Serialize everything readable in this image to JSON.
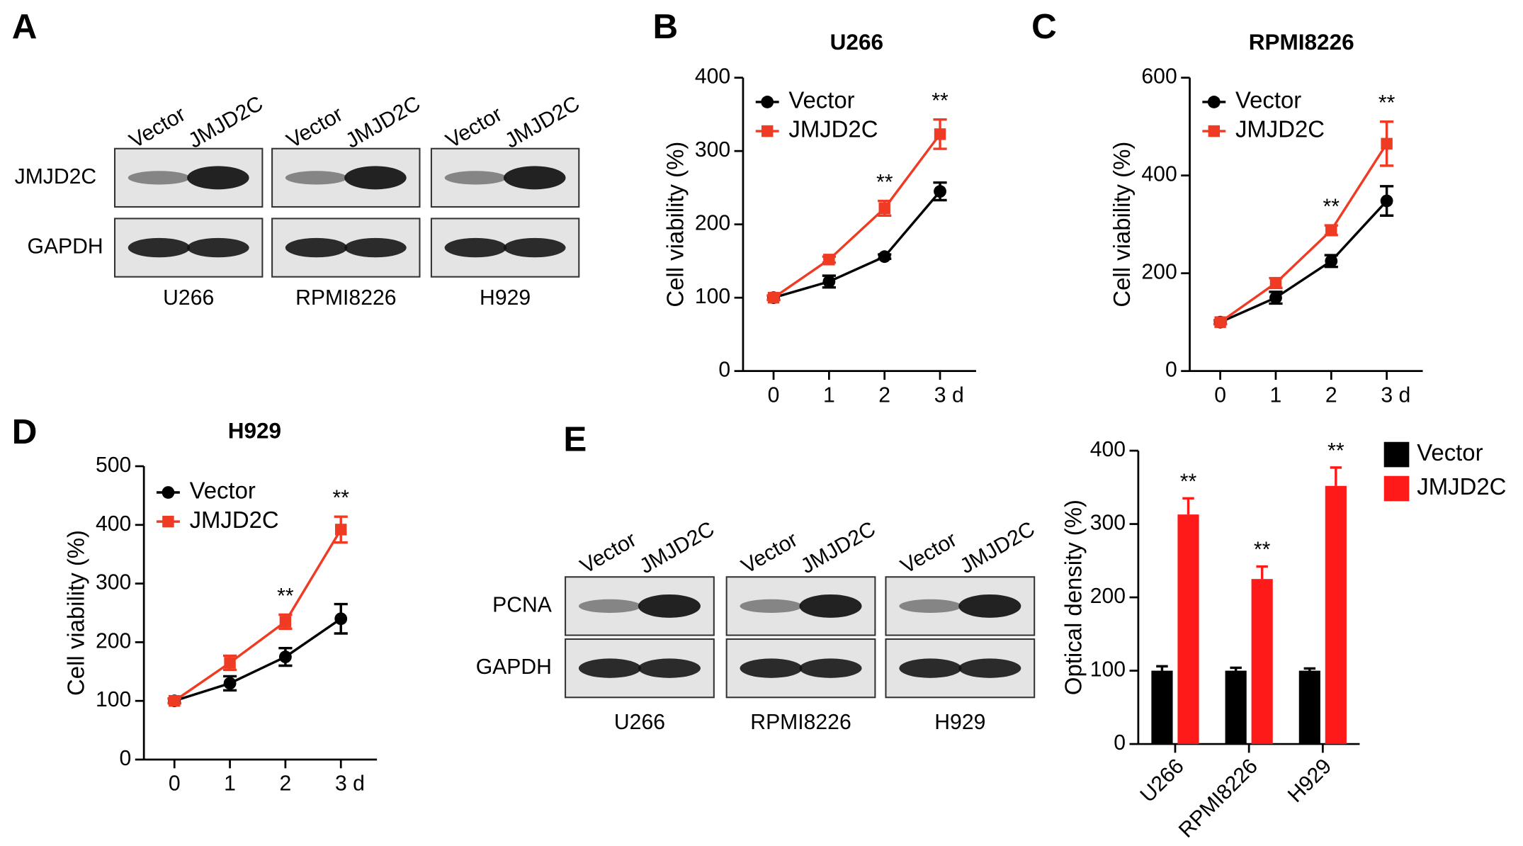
{
  "panel_labels": [
    "A",
    "B",
    "C",
    "D",
    "E"
  ],
  "blots": [
    {
      "lanes": [
        "Vector",
        "JMJD2C"
      ],
      "rows": [
        "JMJD2C",
        "GAPDH"
      ],
      "groups": [
        "U266",
        "RPMI8226",
        "H929"
      ]
    },
    {
      "lanes": [
        "Vector",
        "JMJD2C"
      ],
      "rows": [
        "PCNA",
        "GAPDH"
      ],
      "groups": [
        "U266",
        "RPMI8226",
        "H929"
      ]
    }
  ],
  "chart_data": [
    {
      "type": "line",
      "title": "U266",
      "y_label": "Cell viability (%)",
      "x": [
        0,
        1,
        2,
        3
      ],
      "xlim": [
        -0.55,
        3.65
      ],
      "xticks": [
        0,
        1,
        2,
        {
          "value": 3,
          "label": "3 d"
        }
      ],
      "ylim": [
        0,
        400
      ],
      "yticks": [
        0,
        100,
        200,
        300,
        400
      ],
      "series": [
        {
          "name": "Vector",
          "color": "#000000",
          "marker": "circle",
          "values": [
            100,
            122,
            156,
            245
          ],
          "errors": [
            3,
            8,
            3,
            12
          ]
        },
        {
          "name": "JMJD2C",
          "color": "#ef3b24",
          "marker": "square",
          "values": [
            100,
            152,
            222,
            323
          ],
          "errors": [
            3,
            4,
            10,
            20
          ],
          "significance": [
            null,
            null,
            "**",
            "**"
          ]
        }
      ]
    },
    {
      "type": "line",
      "title": "RPMI8226",
      "y_label": "Cell viability (%)",
      "x": [
        0,
        1,
        2,
        3
      ],
      "xlim": [
        -0.55,
        3.65
      ],
      "xticks": [
        0,
        1,
        2,
        {
          "value": 3,
          "label": "3 d"
        }
      ],
      "ylim": [
        0,
        600
      ],
      "yticks": [
        0,
        200,
        400,
        600
      ],
      "series": [
        {
          "name": "Vector",
          "color": "#000000",
          "marker": "circle",
          "values": [
            100,
            150,
            225,
            348
          ],
          "errors": [
            4,
            12,
            12,
            30
          ]
        },
        {
          "name": "JMJD2C",
          "color": "#ef3b24",
          "marker": "square",
          "values": [
            100,
            180,
            288,
            465
          ],
          "errors": [
            4,
            10,
            10,
            45
          ],
          "significance": [
            null,
            null,
            "**",
            "**"
          ]
        }
      ]
    },
    {
      "type": "line",
      "title": "H929",
      "y_label": "Cell viability (%)",
      "x": [
        0,
        1,
        2,
        3
      ],
      "xlim": [
        -0.55,
        3.65
      ],
      "xticks": [
        0,
        1,
        2,
        {
          "value": 3,
          "label": "3 d"
        }
      ],
      "ylim": [
        0,
        500
      ],
      "yticks": [
        0,
        100,
        200,
        300,
        400,
        500
      ],
      "series": [
        {
          "name": "Vector",
          "color": "#000000",
          "marker": "circle",
          "values": [
            100,
            130,
            175,
            240
          ],
          "errors": [
            4,
            12,
            15,
            25
          ]
        },
        {
          "name": "JMJD2C",
          "color": "#ef3b24",
          "marker": "square",
          "values": [
            100,
            165,
            235,
            392
          ],
          "errors": [
            4,
            12,
            12,
            22
          ],
          "significance": [
            null,
            null,
            "**",
            "**"
          ]
        }
      ]
    },
    {
      "type": "bar",
      "y_label": "Optical density (%)",
      "categories": [
        "U266",
        "RPMI8226",
        "H929"
      ],
      "ylim": [
        0,
        400
      ],
      "yticks": [
        0,
        100,
        200,
        300,
        400
      ],
      "legend": "right",
      "series": [
        {
          "name": "Vector",
          "color": "#000000",
          "values": [
            100,
            100,
            100
          ],
          "errors": [
            6,
            4,
            3
          ]
        },
        {
          "name": "JMJD2C",
          "color": "#ff1a1a",
          "values": [
            313,
            225,
            352
          ],
          "errors": [
            22,
            17,
            25
          ],
          "significance": [
            "**",
            "**",
            "**"
          ]
        }
      ]
    }
  ]
}
